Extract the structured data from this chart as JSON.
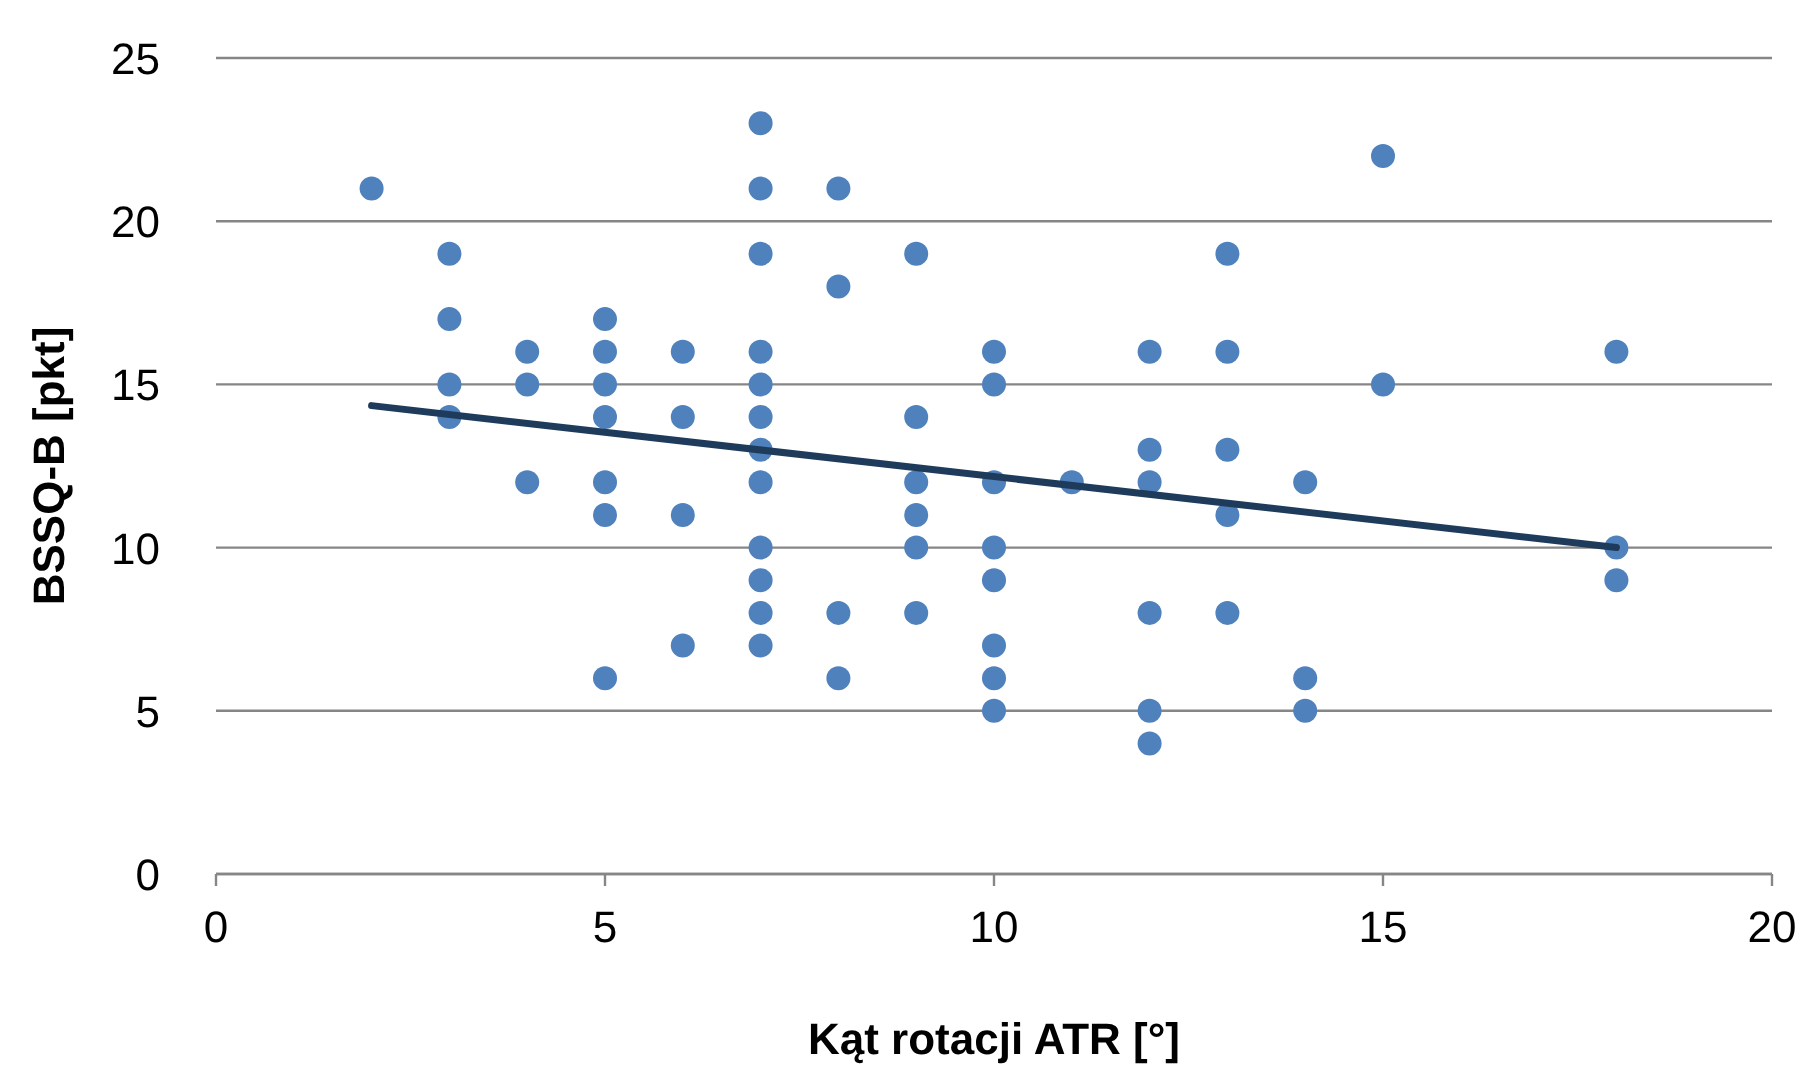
{
  "chart_data": {
    "type": "scatter",
    "xlabel": "Kąt rotacji ATR [°]",
    "ylabel": "BSSQ-B [pkt]",
    "xlim": [
      0,
      20
    ],
    "xticks": [
      0,
      5,
      10,
      15,
      20
    ],
    "ylim": [
      0,
      25
    ],
    "yticks": [
      0,
      5,
      10,
      15,
      20,
      25
    ],
    "grid": "y",
    "marker": "circle",
    "series": [
      {
        "type": "scatter",
        "color": "#4f81bd",
        "x": [
          2,
          3,
          3,
          3,
          3,
          4,
          4,
          4,
          5,
          5,
          5,
          5,
          5,
          5,
          5,
          6,
          6,
          6,
          6,
          7,
          7,
          7,
          7,
          7,
          7,
          7,
          7,
          7,
          7,
          7,
          7,
          8,
          8,
          8,
          8,
          9,
          9,
          9,
          9,
          9,
          9,
          10,
          10,
          10,
          10,
          10,
          10,
          10,
          10,
          11,
          12,
          12,
          12,
          12,
          12,
          12,
          13,
          13,
          13,
          13,
          13,
          14,
          14,
          14,
          15,
          15,
          18,
          18,
          18
        ],
        "values": [
          21,
          19,
          17,
          15,
          14,
          16,
          15,
          12,
          17,
          16,
          15,
          14,
          12,
          11,
          6,
          16,
          14,
          11,
          7,
          23,
          21,
          19,
          16,
          15,
          14,
          13,
          12,
          10,
          9,
          8,
          7,
          21,
          18,
          8,
          6,
          19,
          14,
          12,
          11,
          10,
          8,
          16,
          15,
          12,
          10,
          9,
          7,
          6,
          5,
          12,
          16,
          13,
          12,
          8,
          5,
          4,
          19,
          16,
          13,
          11,
          8,
          12,
          6,
          5,
          22,
          15,
          16,
          10,
          9
        ]
      },
      {
        "type": "line",
        "color": "#1f3b5c",
        "x": [
          2,
          18
        ],
        "values": [
          14.35,
          10
        ],
        "marker": "none",
        "line_style": "solid"
      }
    ]
  }
}
